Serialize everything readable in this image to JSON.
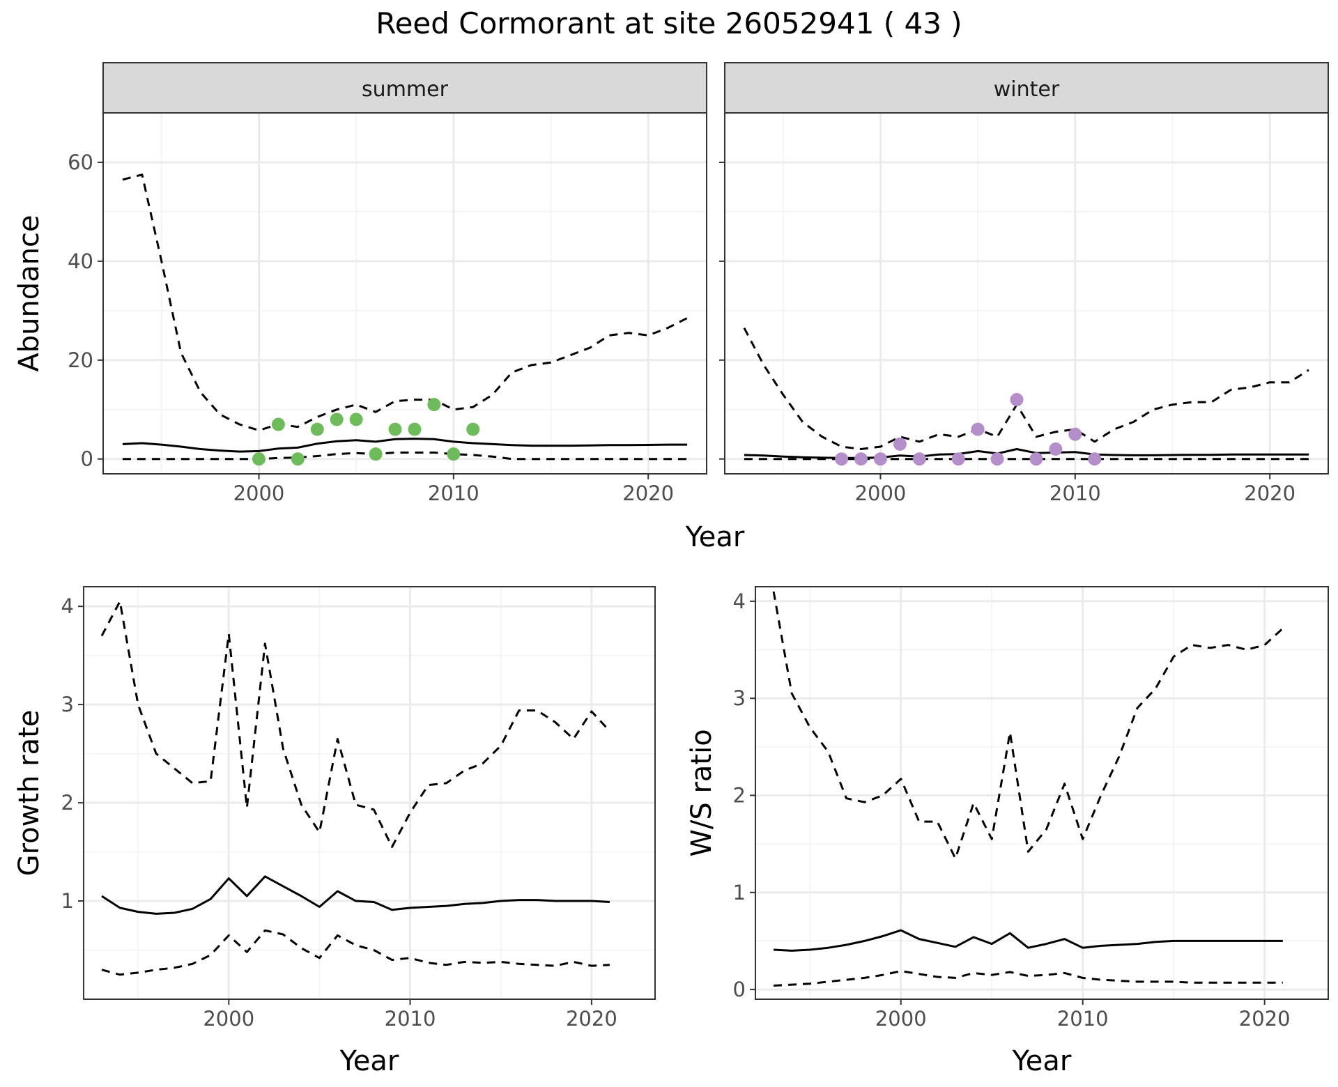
{
  "title": "Reed Cormorant at site 26052941 ( 43 )",
  "chart_data": [
    {
      "id": "summer",
      "type": "line",
      "strip": "summer",
      "xlabel": "Year",
      "ylabel": "Abundance",
      "xlim": [
        1992,
        2023
      ],
      "ylim": [
        -3,
        70
      ],
      "xticks": [
        2000,
        2010,
        2020
      ],
      "yticks": [
        0,
        20,
        40,
        60
      ],
      "grid": true,
      "point_color": "#6dbb5a",
      "series": [
        {
          "role": "upper",
          "style": "dashed",
          "x": [
            1993,
            1994,
            1995,
            1996,
            1997,
            1998,
            1999,
            2000,
            2001,
            2002,
            2003,
            2004,
            2005,
            2006,
            2007,
            2008,
            2009,
            2010,
            2011,
            2012,
            2013,
            2014,
            2015,
            2016,
            2017,
            2018,
            2019,
            2020,
            2021,
            2022
          ],
          "y": [
            56.5,
            57.5,
            40,
            21.5,
            13.5,
            9,
            7,
            5.8,
            7,
            6.5,
            8.5,
            10,
            11,
            9.5,
            11.7,
            12,
            12,
            10,
            10.5,
            13,
            17.5,
            19,
            19.5,
            21,
            22.5,
            25,
            25.5,
            25,
            26.5,
            28.5
          ]
        },
        {
          "role": "mean",
          "style": "solid",
          "x": [
            1993,
            1994,
            1995,
            1996,
            1997,
            1998,
            1999,
            2000,
            2001,
            2002,
            2003,
            2004,
            2005,
            2006,
            2007,
            2008,
            2009,
            2010,
            2011,
            2012,
            2013,
            2014,
            2015,
            2016,
            2017,
            2018,
            2019,
            2020,
            2021,
            2022
          ],
          "y": [
            3.0,
            3.2,
            2.9,
            2.5,
            2.0,
            1.7,
            1.5,
            1.6,
            2.1,
            2.3,
            3.1,
            3.6,
            3.8,
            3.5,
            4.0,
            4.1,
            4.0,
            3.5,
            3.2,
            3.0,
            2.8,
            2.7,
            2.7,
            2.7,
            2.75,
            2.8,
            2.8,
            2.85,
            2.9,
            2.9
          ]
        },
        {
          "role": "lower",
          "style": "dashed",
          "x": [
            1993,
            1994,
            1995,
            1996,
            1997,
            1998,
            1999,
            2000,
            2001,
            2002,
            2003,
            2004,
            2005,
            2006,
            2007,
            2008,
            2009,
            2010,
            2011,
            2012,
            2013,
            2014,
            2015,
            2016,
            2017,
            2018,
            2019,
            2020,
            2021,
            2022
          ],
          "y": [
            0,
            0,
            0,
            0,
            0,
            0,
            0,
            0,
            0.2,
            0.3,
            0.6,
            1.0,
            1.2,
            1.0,
            1.3,
            1.3,
            1.3,
            1.0,
            0.8,
            0.5,
            0,
            0,
            0,
            0,
            0,
            0,
            0,
            0,
            0,
            0
          ]
        }
      ],
      "points": {
        "x": [
          2000,
          2001,
          2002,
          2003,
          2004,
          2005,
          2006,
          2007,
          2008,
          2009,
          2010,
          2011
        ],
        "y": [
          0,
          7,
          0,
          6,
          8,
          8,
          1,
          6,
          6,
          11,
          1,
          6
        ]
      }
    },
    {
      "id": "winter",
      "type": "line",
      "strip": "winter",
      "xlabel": "Year",
      "ylabel": "",
      "xlim": [
        1992,
        2023
      ],
      "ylim": [
        -3,
        70
      ],
      "xticks": [
        2000,
        2010,
        2020
      ],
      "yticks": [
        0,
        20,
        40,
        60
      ],
      "grid": true,
      "point_color": "#b48ec9",
      "series": [
        {
          "role": "upper",
          "style": "dashed",
          "x": [
            1993,
            1994,
            1995,
            1996,
            1997,
            1998,
            1999,
            2000,
            2001,
            2002,
            2003,
            2004,
            2005,
            2006,
            2007,
            2008,
            2009,
            2010,
            2011,
            2012,
            2013,
            2014,
            2015,
            2016,
            2017,
            2018,
            2019,
            2020,
            2021,
            2022
          ],
          "y": [
            26.5,
            19,
            13,
            7.5,
            4.5,
            2.5,
            2,
            2.5,
            4.5,
            3.5,
            5,
            4.5,
            6,
            4.5,
            11,
            4.5,
            5.5,
            6,
            3.5,
            6,
            7.5,
            10,
            11,
            11.5,
            11.5,
            14,
            14.5,
            15.5,
            15.5,
            18
          ]
        },
        {
          "role": "mean",
          "style": "solid",
          "x": [
            1993,
            1994,
            1995,
            1996,
            1997,
            1998,
            1999,
            2000,
            2001,
            2002,
            2003,
            2004,
            2005,
            2006,
            2007,
            2008,
            2009,
            2010,
            2011,
            2012,
            2013,
            2014,
            2015,
            2016,
            2017,
            2018,
            2019,
            2020,
            2021,
            2022
          ],
          "y": [
            0.8,
            0.7,
            0.5,
            0.35,
            0.25,
            0.2,
            0.2,
            0.3,
            0.7,
            0.5,
            0.9,
            1.0,
            1.6,
            1.1,
            2.0,
            1.2,
            1.3,
            1.4,
            0.9,
            0.8,
            0.75,
            0.75,
            0.8,
            0.85,
            0.85,
            0.9,
            0.9,
            0.9,
            0.9,
            0.9
          ]
        },
        {
          "role": "lower",
          "style": "dashed",
          "x": [
            1993,
            2022
          ],
          "y": [
            0,
            0
          ]
        }
      ],
      "points": {
        "x": [
          1998,
          1999,
          2000,
          2001,
          2002,
          2004,
          2005,
          2006,
          2007,
          2008,
          2009,
          2010,
          2011
        ],
        "y": [
          0,
          0,
          0,
          3,
          0,
          0,
          6,
          0,
          12,
          0,
          2,
          5,
          0
        ]
      }
    },
    {
      "id": "growth",
      "type": "line",
      "xlabel": "Year",
      "ylabel": "Growth rate",
      "xlim": [
        1992,
        2023.5
      ],
      "ylim": [
        0.0,
        4.2
      ],
      "xticks": [
        2000,
        2010,
        2020
      ],
      "yticks": [
        1,
        2,
        3,
        4
      ],
      "grid": true,
      "series": [
        {
          "role": "upper",
          "style": "dashed",
          "x": [
            1993,
            1994,
            1995,
            1996,
            1997,
            1998,
            1999,
            2000,
            2001,
            2002,
            2003,
            2004,
            2005,
            2006,
            2007,
            2008,
            2009,
            2010,
            2011,
            2012,
            2013,
            2014,
            2015,
            2016,
            2017,
            2018,
            2019,
            2020,
            2021
          ],
          "y": [
            3.7,
            4.05,
            3.0,
            2.5,
            2.35,
            2.2,
            2.22,
            3.72,
            1.95,
            3.62,
            2.55,
            1.98,
            1.7,
            2.65,
            1.98,
            1.93,
            1.55,
            1.9,
            2.18,
            2.2,
            2.33,
            2.4,
            2.58,
            2.94,
            2.94,
            2.82,
            2.65,
            2.93,
            2.73
          ]
        },
        {
          "role": "mean",
          "style": "solid",
          "x": [
            1993,
            1994,
            1995,
            1996,
            1997,
            1998,
            1999,
            2000,
            2001,
            2002,
            2003,
            2004,
            2005,
            2006,
            2007,
            2008,
            2009,
            2010,
            2011,
            2012,
            2013,
            2014,
            2015,
            2016,
            2017,
            2018,
            2019,
            2020,
            2021
          ],
          "y": [
            1.05,
            0.93,
            0.89,
            0.87,
            0.88,
            0.92,
            1.02,
            1.23,
            1.05,
            1.25,
            1.15,
            1.05,
            0.94,
            1.1,
            1.0,
            0.99,
            0.91,
            0.93,
            0.94,
            0.95,
            0.97,
            0.98,
            1.0,
            1.01,
            1.01,
            1.0,
            1.0,
            1.0,
            0.99
          ]
        },
        {
          "role": "lower",
          "style": "dashed",
          "x": [
            1993,
            1994,
            1995,
            1996,
            1997,
            1998,
            1999,
            2000,
            2001,
            2002,
            2003,
            2004,
            2005,
            2006,
            2007,
            2008,
            2009,
            2010,
            2011,
            2012,
            2013,
            2014,
            2015,
            2016,
            2017,
            2018,
            2019,
            2020,
            2021
          ],
          "y": [
            0.3,
            0.25,
            0.27,
            0.3,
            0.32,
            0.36,
            0.45,
            0.65,
            0.48,
            0.7,
            0.66,
            0.52,
            0.42,
            0.65,
            0.55,
            0.5,
            0.4,
            0.42,
            0.37,
            0.35,
            0.38,
            0.37,
            0.38,
            0.36,
            0.35,
            0.34,
            0.38,
            0.34,
            0.35
          ]
        }
      ]
    },
    {
      "id": "ws",
      "type": "line",
      "xlabel": "Year",
      "ylabel": "W/S ratio",
      "xlim": [
        1992,
        2023.5
      ],
      "ylim": [
        -0.1,
        4.15
      ],
      "xticks": [
        2000,
        2010,
        2020
      ],
      "yticks": [
        0,
        1,
        2,
        3,
        4
      ],
      "grid": true,
      "series": [
        {
          "role": "upper",
          "style": "dashed",
          "x": [
            1993,
            1994,
            1995,
            1996,
            1997,
            1998,
            1999,
            2000,
            2001,
            2002,
            2003,
            2004,
            2005,
            2006,
            2007,
            2008,
            2009,
            2010,
            2011,
            2012,
            2013,
            2014,
            2015,
            2016,
            2017,
            2018,
            2019,
            2020,
            2021
          ],
          "y": [
            4.1,
            3.05,
            2.7,
            2.45,
            1.97,
            1.93,
            2.0,
            2.17,
            1.73,
            1.73,
            1.35,
            1.92,
            1.55,
            2.65,
            1.42,
            1.65,
            2.12,
            1.55,
            2.0,
            2.4,
            2.9,
            3.1,
            3.43,
            3.55,
            3.52,
            3.55,
            3.5,
            3.55,
            3.72
          ]
        },
        {
          "role": "mean",
          "style": "solid",
          "x": [
            1993,
            1994,
            1995,
            1996,
            1997,
            1998,
            1999,
            2000,
            2001,
            2002,
            2003,
            2004,
            2005,
            2006,
            2007,
            2008,
            2009,
            2010,
            2011,
            2012,
            2013,
            2014,
            2015,
            2016,
            2017,
            2018,
            2019,
            2020,
            2021
          ],
          "y": [
            0.41,
            0.4,
            0.41,
            0.43,
            0.46,
            0.5,
            0.55,
            0.61,
            0.52,
            0.48,
            0.44,
            0.54,
            0.47,
            0.58,
            0.43,
            0.47,
            0.52,
            0.43,
            0.45,
            0.46,
            0.47,
            0.49,
            0.5,
            0.5,
            0.5,
            0.5,
            0.5,
            0.5,
            0.5
          ]
        },
        {
          "role": "lower",
          "style": "dashed",
          "x": [
            1993,
            1994,
            1995,
            1996,
            1997,
            1998,
            1999,
            2000,
            2001,
            2002,
            2003,
            2004,
            2005,
            2006,
            2007,
            2008,
            2009,
            2010,
            2011,
            2012,
            2013,
            2014,
            2015,
            2016,
            2017,
            2018,
            2019,
            2020,
            2021
          ],
          "y": [
            0.04,
            0.05,
            0.06,
            0.08,
            0.1,
            0.12,
            0.15,
            0.19,
            0.16,
            0.13,
            0.12,
            0.17,
            0.15,
            0.18,
            0.14,
            0.15,
            0.17,
            0.12,
            0.1,
            0.09,
            0.08,
            0.08,
            0.08,
            0.07,
            0.07,
            0.07,
            0.07,
            0.07,
            0.07
          ]
        }
      ]
    }
  ]
}
